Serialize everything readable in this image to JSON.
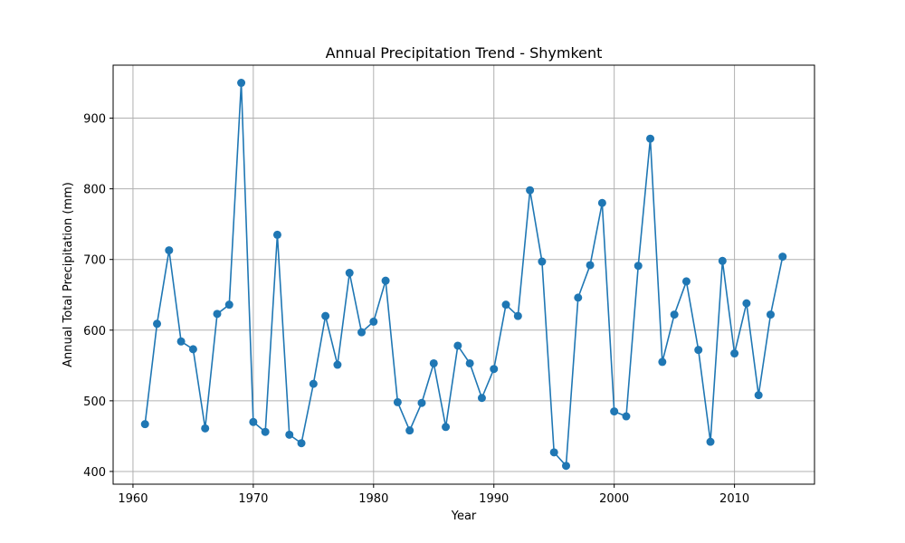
{
  "chart_data": {
    "type": "line",
    "title": "Annual Precipitation Trend - Shymkent",
    "xlabel": "Year",
    "ylabel": "Annual Total Precipitation (mm)",
    "xlim": [
      1958.35,
      2016.65
    ],
    "ylim": [
      382,
      975
    ],
    "xticks": [
      1960,
      1970,
      1980,
      1990,
      2000,
      2010
    ],
    "yticks": [
      400,
      500,
      600,
      700,
      800,
      900
    ],
    "grid": true,
    "legend": "none",
    "series": [
      {
        "color": "#1f77b4",
        "marker": "circle",
        "x": [
          1961,
          1962,
          1963,
          1964,
          1965,
          1966,
          1967,
          1968,
          1969,
          1970,
          1971,
          1972,
          1973,
          1974,
          1975,
          1976,
          1977,
          1978,
          1979,
          1980,
          1981,
          1982,
          1983,
          1984,
          1985,
          1986,
          1987,
          1988,
          1989,
          1990,
          1991,
          1992,
          1993,
          1994,
          1995,
          1996,
          1997,
          1998,
          1999,
          2000,
          2001,
          2002,
          2003,
          2004,
          2005,
          2006,
          2007,
          2008,
          2009,
          2010,
          2011,
          2012,
          2013,
          2014
        ],
        "values": [
          467,
          609,
          713,
          584,
          573,
          461,
          623,
          636,
          950,
          470,
          456,
          735,
          452,
          440,
          524,
          620,
          551,
          681,
          597,
          612,
          670,
          498,
          458,
          497,
          553,
          463,
          578,
          553,
          504,
          545,
          636,
          620,
          798,
          697,
          427,
          408,
          646,
          692,
          780,
          485,
          478,
          691,
          871,
          555,
          622,
          669,
          572,
          442,
          698,
          567,
          638,
          508,
          622,
          704
        ]
      }
    ]
  }
}
